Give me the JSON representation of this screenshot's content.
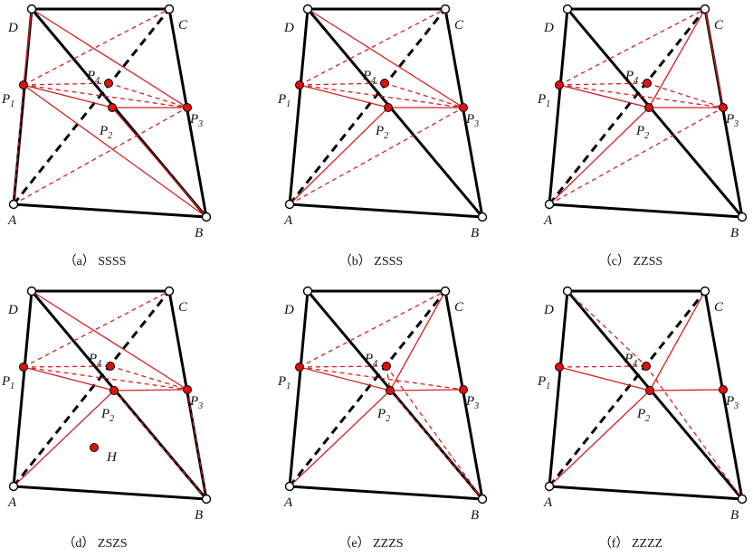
{
  "colors": {
    "edge": "#000000",
    "red": "#d42020",
    "point_fill": "#e01010",
    "open_point_fill": "#ffffff"
  },
  "vertex_labels": {
    "A": "A",
    "B": "B",
    "C": "C",
    "D": "D",
    "H": "H"
  },
  "point_labels": [
    {
      "id": "P1",
      "letter": "P",
      "sub": "1"
    },
    {
      "id": "P2",
      "letter": "P",
      "sub": "2"
    },
    {
      "id": "P3",
      "letter": "P",
      "sub": "3"
    },
    {
      "id": "P4",
      "letter": "P",
      "sub": "4"
    }
  ],
  "panels": [
    {
      "id": "a",
      "caption": "（a） SSSS"
    },
    {
      "id": "b",
      "caption": "（b） ZSSS"
    },
    {
      "id": "c",
      "caption": "（c） ZZSS"
    },
    {
      "id": "d",
      "caption": "（d） ZSZS"
    },
    {
      "id": "e",
      "caption": "（e） ZZZS"
    },
    {
      "id": "f",
      "caption": "（f） ZZZZ"
    }
  ]
}
